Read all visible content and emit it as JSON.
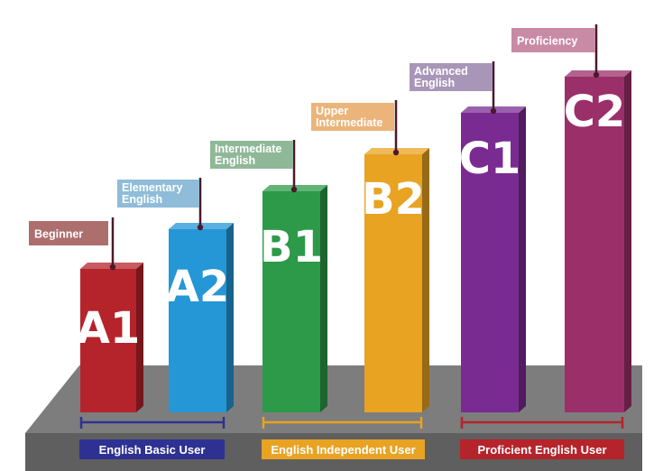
{
  "levels": [
    {
      "code": "A1",
      "label_lines": [
        "Beginner"
      ],
      "color": "#b5232b",
      "flag_color": "#ad6e6e"
    },
    {
      "code": "A2",
      "label_lines": [
        "Elementary",
        "English"
      ],
      "color": "#2596d6",
      "flag_color": "#8fbcd8"
    },
    {
      "code": "B1",
      "label_lines": [
        "Intermediate",
        "English"
      ],
      "color": "#2c9a48",
      "flag_color": "#8fb898"
    },
    {
      "code": "B2",
      "label_lines": [
        "Upper",
        "Intermediate"
      ],
      "color": "#e8a323",
      "flag_color": "#ebb47a"
    },
    {
      "code": "C1",
      "label_lines": [
        "Advanced",
        "English"
      ],
      "color": "#7a2b91",
      "flag_color": "#a896b8"
    },
    {
      "code": "C2",
      "label_lines": [
        "Proficiency"
      ],
      "color": "#9b2f6a",
      "flag_color": "#c98aa6"
    }
  ],
  "groups": [
    {
      "label": "English Basic User",
      "color": "#2e3192"
    },
    {
      "label": "English Independent User",
      "color": "#e8a323"
    },
    {
      "label": "Proficient English User",
      "color": "#b5232b"
    }
  ]
}
